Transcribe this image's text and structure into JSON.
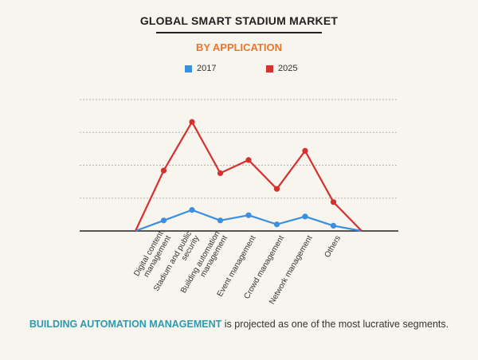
{
  "chart_data": {
    "type": "line",
    "title": "GLOBAL SMART STADIUM MARKET",
    "subtitle": "BY APPLICATION",
    "categories": [
      "",
      "Digital content management",
      "Stadium and public security",
      "Building automation management",
      "Event management",
      "Crowd management",
      "Network management",
      "Others",
      ""
    ],
    "category_lines": [
      [],
      [
        "Digital content",
        "management"
      ],
      [
        "Stadium and public",
        "security"
      ],
      [
        "Building automation",
        "management"
      ],
      [
        "Event management"
      ],
      [
        "Crowd management"
      ],
      [
        "Network management"
      ],
      [
        "Others"
      ],
      []
    ],
    "series": [
      {
        "name": "2017",
        "color": "#3a8fe0",
        "values": [
          0,
          0.8,
          1.6,
          0.8,
          1.2,
          0.5,
          1.1,
          0.4,
          0
        ]
      },
      {
        "name": "2025",
        "color": "#d63030",
        "values": [
          0,
          4.6,
          8.3,
          4.4,
          5.4,
          3.2,
          6.1,
          2.2,
          0
        ]
      }
    ],
    "ylim": [
      0,
      10
    ],
    "gridlines": [
      2.5,
      5,
      7.5,
      10
    ],
    "xlabel": "",
    "ylabel": ""
  },
  "footer": {
    "highlight": "BUILDING AUTOMATION MANAGEMENT",
    "text": " is projected as one of the most lucrative segments."
  }
}
